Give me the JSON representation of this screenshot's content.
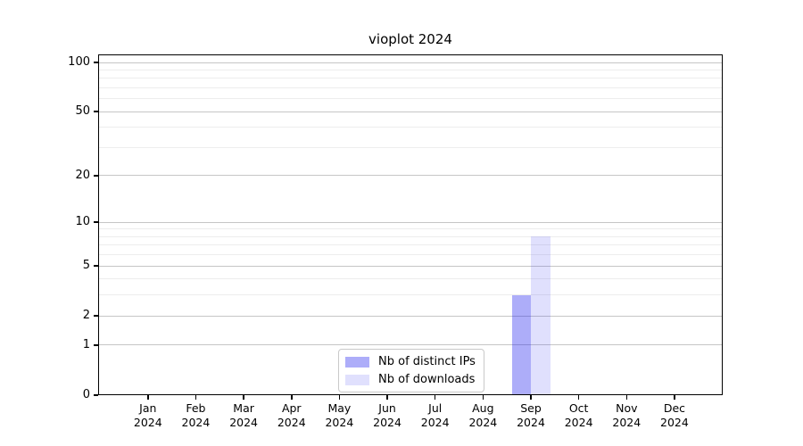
{
  "chart_data": {
    "type": "bar",
    "title": "vioplot 2024",
    "categories": [
      "Jan 2024",
      "Feb 2024",
      "Mar 2024",
      "Apr 2024",
      "May 2024",
      "Jun 2024",
      "Jul 2024",
      "Aug 2024",
      "Sep 2024",
      "Oct 2024",
      "Nov 2024",
      "Dec 2024"
    ],
    "series": [
      {
        "name": "Nb of distinct IPs",
        "color": "rgba(40,40,240,0.38)",
        "values": [
          0,
          0,
          0,
          0,
          0,
          0,
          0,
          0,
          3,
          0,
          0,
          0
        ]
      },
      {
        "name": "Nb of downloads",
        "color": "rgba(40,40,240,0.145)",
        "values": [
          0,
          0,
          0,
          0,
          0,
          0,
          0,
          0,
          8,
          0,
          0,
          0
        ]
      }
    ],
    "y_axis": {
      "scale": "log1p",
      "ticks": [
        0,
        1,
        2,
        5,
        10,
        20,
        50,
        100
      ],
      "tick_labels": [
        "0",
        "1",
        "2",
        "5",
        "10",
        "20",
        "50",
        "100"
      ],
      "gridline_values": [
        1,
        2,
        3,
        4,
        5,
        6,
        7,
        8,
        9,
        10,
        20,
        30,
        40,
        50,
        60,
        70,
        80,
        90,
        100
      ],
      "range": [
        0,
        112
      ]
    },
    "legend": {
      "position": "bottom-center",
      "entries": [
        "Nb of distinct IPs",
        "Nb of downloads"
      ]
    },
    "grid": true
  },
  "colors": {
    "grid_major": "#c6c6c6",
    "grid_minor": "#ededed",
    "axis": "#000000",
    "background": "#ffffff"
  }
}
